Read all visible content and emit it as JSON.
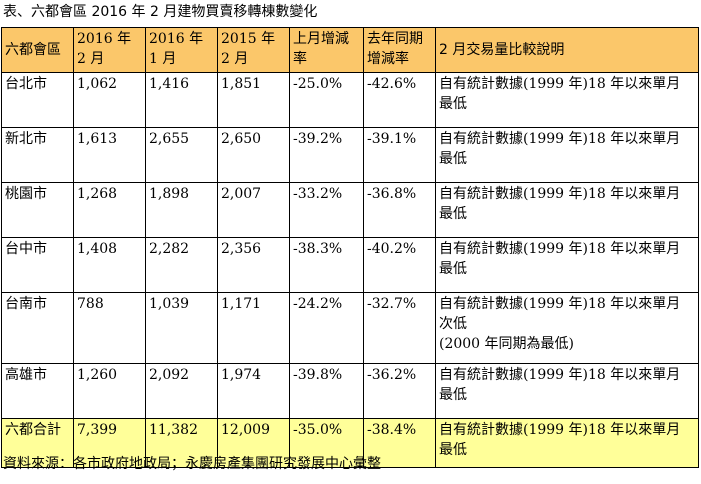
{
  "caption": "表、六都會區 2016 年 2 月建物買賣移轉棟數變化",
  "headers": {
    "city": "六都會區",
    "feb2016": "2016 年 2 月",
    "jan2016": "2016 年 1 月",
    "feb2015": "2015 年 2 月",
    "mom": "上月增減率",
    "yoy": "去年同期增減率",
    "note": "2 月交易量比較說明"
  },
  "rows": [
    {
      "city": "台北市",
      "feb2016": "1,062",
      "jan2016": "1,416",
      "feb2015": "1,851",
      "mom": "-25.0%",
      "yoy": "-42.6%",
      "note1": "自有統計數據(1999 年)18 年以來單月",
      "note2": "最低",
      "note3": ""
    },
    {
      "city": "新北市",
      "feb2016": "1,613",
      "jan2016": "2,655",
      "feb2015": "2,650",
      "mom": "-39.2%",
      "yoy": "-39.1%",
      "note1": "自有統計數據(1999 年)18 年以來單月",
      "note2": "最低",
      "note3": ""
    },
    {
      "city": "桃園市",
      "feb2016": "1,268",
      "jan2016": "1,898",
      "feb2015": "2,007",
      "mom": "-33.2%",
      "yoy": "-36.8%",
      "note1": "自有統計數據(1999 年)18 年以來單月",
      "note2": "最低",
      "note3": ""
    },
    {
      "city": "台中市",
      "feb2016": "1,408",
      "jan2016": "2,282",
      "feb2015": "2,356",
      "mom": "-38.3%",
      "yoy": "-40.2%",
      "note1": "自有統計數據(1999 年)18 年以來單月",
      "note2": "最低",
      "note3": ""
    },
    {
      "city": "台南市",
      "feb2016": "788",
      "jan2016": "1,039",
      "feb2015": "1,171",
      "mom": "-24.2%",
      "yoy": "-32.7%",
      "note1": "自有統計數據(1999 年)18 年以來單月",
      "note2": "次低",
      "note3": "(2000 年同期為最低)"
    },
    {
      "city": "高雄市",
      "feb2016": "1,260",
      "jan2016": "2,092",
      "feb2015": "1,974",
      "mom": "-39.8%",
      "yoy": "-36.2%",
      "note1": "自有統計數據(1999 年)18 年以來單月",
      "note2": "最低",
      "note3": ""
    }
  ],
  "total": {
    "city": "六都合計",
    "feb2016": "7,399",
    "jan2016": "11,382",
    "feb2015": "12,009",
    "mom": "-35.0%",
    "yoy": "-38.4%",
    "note1": "自有統計數據(1999 年)18 年以來單月",
    "note2": "最低"
  },
  "source": "資料來源：各市政府地政局；永慶房產集團研究發展中心彙整",
  "colors": {
    "header_bg": "#fbc76a",
    "total_bg": "#ffff99"
  }
}
